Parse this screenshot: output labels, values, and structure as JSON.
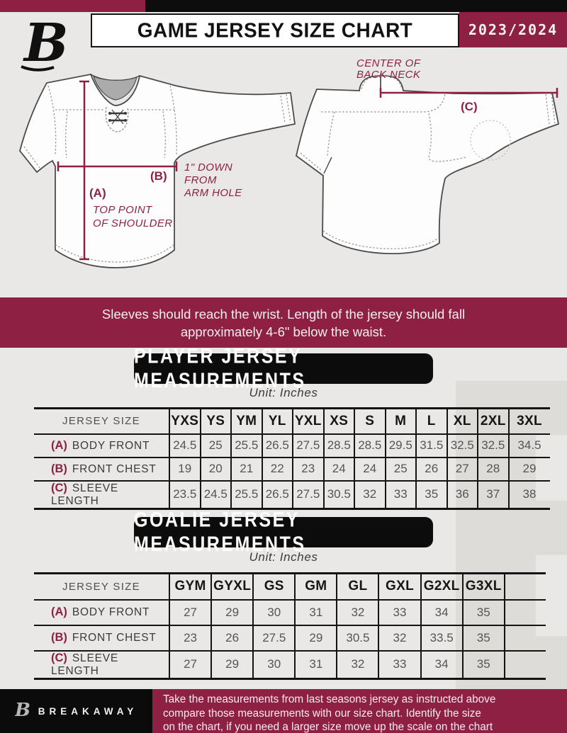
{
  "colors": {
    "maroon": "#8e2044",
    "black": "#0d0d0d",
    "page_bg": "#e9e8e6",
    "value_gray": "#545454",
    "watermark_gray": "#dedcd9"
  },
  "header": {
    "title": "GAME JERSEY SIZE CHART",
    "season": "2023/2024",
    "logo_icon": "breakaway-b-logo"
  },
  "diagram": {
    "front": {
      "label_a": "(A)",
      "label_b": "(B)",
      "note_a_line1": "TOP POINT",
      "note_a_line2": "OF SHOULDER",
      "note_b_line1": "1\" DOWN",
      "note_b_line2": "FROM",
      "note_b_line3": "ARM HOLE"
    },
    "back": {
      "label_c": "(C)",
      "note_c_line1": "CENTER OF",
      "note_c_line2": "BACK NECK"
    }
  },
  "banner": {
    "line1": "Sleeves should reach the wrist. Length of the jersey should fall",
    "line2": "approximately 4-6\" below the waist."
  },
  "player_section": {
    "title": "PLAYER JERSEY MEASUREMENTS",
    "unit": "Unit: Inches",
    "table": {
      "header_label": "JERSEY SIZE",
      "sizes": [
        "YXS",
        "YS",
        "YM",
        "YL",
        "YXL",
        "XS",
        "S",
        "M",
        "L",
        "XL",
        "2XL",
        "3XL"
      ],
      "rows": [
        {
          "key": "(A)",
          "label": "BODY FRONT",
          "values": [
            "24.5",
            "25",
            "25.5",
            "26.5",
            "27.5",
            "28.5",
            "28.5",
            "29.5",
            "31.5",
            "32.5",
            "32.5",
            "34.5"
          ]
        },
        {
          "key": "(B)",
          "label": "FRONT CHEST",
          "values": [
            "19",
            "20",
            "21",
            "22",
            "23",
            "24",
            "24",
            "25",
            "26",
            "27",
            "28",
            "29"
          ]
        },
        {
          "key": "(C)",
          "label": "SLEEVE LENGTH",
          "values": [
            "23.5",
            "24.5",
            "25.5",
            "26.5",
            "27.5",
            "30.5",
            "32",
            "33",
            "35",
            "36",
            "37",
            "38"
          ]
        }
      ]
    }
  },
  "goalie_section": {
    "title": "GOALIE JERSEY MEASUREMENTS",
    "unit": "Unit: Inches",
    "table": {
      "header_label": "JERSEY SIZE",
      "sizes": [
        "GYM",
        "GYXL",
        "GS",
        "GM",
        "GL",
        "GXL",
        "G2XL",
        "G3XL",
        ""
      ],
      "rows": [
        {
          "key": "(A)",
          "label": "BODY FRONT",
          "values": [
            "27",
            "29",
            "30",
            "31",
            "32",
            "33",
            "34",
            "35",
            ""
          ]
        },
        {
          "key": "(B)",
          "label": "FRONT CHEST",
          "values": [
            "23",
            "26",
            "27.5",
            "29",
            "30.5",
            "32",
            "33.5",
            "35",
            ""
          ]
        },
        {
          "key": "(C)",
          "label": "SLEEVE LENGTH",
          "values": [
            "27",
            "29",
            "30",
            "31",
            "32",
            "33",
            "34",
            "35",
            ""
          ]
        }
      ]
    }
  },
  "footer": {
    "brand": "BREAKAWAY",
    "line1": "Take the measurements from last seasons jersey as instructed above",
    "line2": "compare those measurements  with our size chart. Identify the size",
    "line3": "on the chart, if you need a larger size move up the scale on the chart"
  }
}
